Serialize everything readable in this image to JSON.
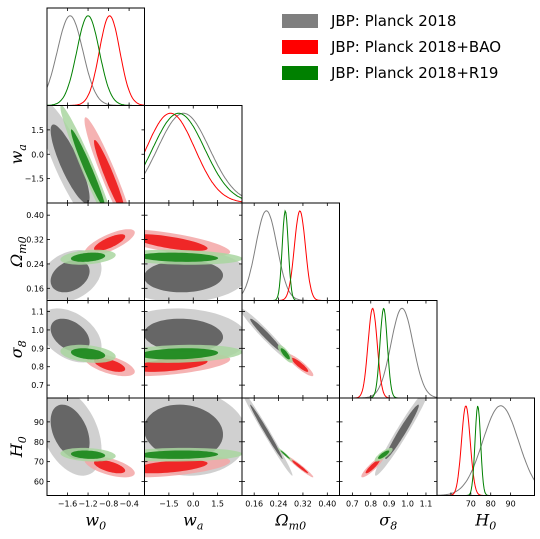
{
  "chart_data": {
    "type": "corner-triangle",
    "legend": {
      "placement": "top-right",
      "entries": [
        {
          "label": "JBP: Planck 2018",
          "color": "#7f7f7f",
          "dark": "#606060",
          "light": "#c8c8c8"
        },
        {
          "label": "JBP: Planck 2018+BAO",
          "color": "#ff0000",
          "dark": "#ee2020",
          "light": "#f3a6a6"
        },
        {
          "label": "JBP: Planck 2018+R19",
          "color": "#008000",
          "dark": "#1f8a1f",
          "light": "#a9d6a0"
        }
      ]
    },
    "parameters": [
      {
        "key": "w0",
        "label": "w",
        "sub": "0",
        "range": [
          -2.0,
          -0.1
        ],
        "ticks": [
          -1.6,
          -1.2,
          -0.8,
          -0.4
        ],
        "tick_labels": [
          "−1.6",
          "−1.2",
          "−0.8",
          "−0.4"
        ]
      },
      {
        "key": "wa",
        "label": "w",
        "sub": "a",
        "range": [
          -3.0,
          3.0
        ],
        "ticks": [
          -1.5,
          0.0,
          1.5
        ],
        "tick_labels": [
          "−1.5",
          "0.0",
          "1.5"
        ]
      },
      {
        "key": "Om",
        "label": "Ω",
        "sub": "m0",
        "range": [
          0.12,
          0.44
        ],
        "ticks": [
          0.16,
          0.24,
          0.32,
          0.4
        ],
        "tick_labels": [
          "0.16",
          "0.24",
          "0.32",
          "0.40"
        ]
      },
      {
        "key": "s8",
        "label": "σ",
        "sub": "8",
        "range": [
          0.63,
          1.16
        ],
        "ticks": [
          0.7,
          0.8,
          0.9,
          1.0,
          1.1
        ],
        "tick_labels": [
          "0.7",
          "0.8",
          "0.9",
          "1.0",
          "1.1"
        ]
      },
      {
        "key": "H0",
        "label": "H",
        "sub": "0",
        "range": [
          53.0,
          102.0
        ],
        "ticks": [
          60,
          70,
          80,
          90
        ],
        "tick_labels": [
          "60",
          "70",
          "80",
          "90"
        ]
      }
    ],
    "bottom_tick_labels": {
      "w0": [
        "−1.6",
        "−1.2",
        "−0.8",
        "−0.4"
      ],
      "wa": [
        "−1.5",
        "0.0",
        "1.5"
      ],
      "Om": [
        "0.16",
        "0.24",
        "0.32",
        "0.40"
      ],
      "s8": [
        "0.7",
        "0.8",
        "0.9",
        "1.0",
        "1.1"
      ],
      "H0": [
        "70",
        "80",
        "90"
      ]
    },
    "left_tick_labels": {
      "wa": [
        "−1.5",
        "0.0",
        "1.5"
      ],
      "Om": [
        "0.16",
        "0.24",
        "0.32",
        "0.40"
      ],
      "s8": [
        "0.7",
        "0.8",
        "0.9",
        "1.0",
        "1.1"
      ],
      "H0": [
        "60",
        "70",
        "80",
        "90"
      ]
    },
    "posteriors": {
      "planck": {
        "w0": {
          "mean": -1.55,
          "sd": 0.25
        },
        "wa": {
          "mean": -0.6,
          "sd": 1.6
        },
        "Om": {
          "mean": 0.2,
          "sd": 0.035
        },
        "s8": {
          "mean": 0.97,
          "sd": 0.06
        },
        "H0": {
          "mean": 85.0,
          "sd": 9.0
        },
        "corr": {
          "w0|wa": -0.85,
          "w0|Om": 0.3,
          "w0|s8": -0.4,
          "w0|H0": -0.4,
          "wa|Om": 0.05,
          "wa|s8": -0.1,
          "wa|H0": -0.1,
          "Om|s8": -0.97,
          "Om|H0": -0.99,
          "s8|H0": 0.97
        }
      },
      "bao": {
        "w0": {
          "mean": -0.78,
          "sd": 0.2
        },
        "wa": {
          "mean": -1.4,
          "sd": 1.5
        },
        "Om": {
          "mean": 0.31,
          "sd": 0.018
        },
        "s8": {
          "mean": 0.81,
          "sd": 0.025
        },
        "H0": {
          "mean": 67.5,
          "sd": 2.2
        },
        "corr": {
          "w0|wa": -0.95,
          "w0|Om": 0.75,
          "w0|s8": -0.6,
          "w0|H0": -0.6,
          "wa|Om": -0.7,
          "wa|s8": 0.5,
          "wa|H0": 0.5,
          "Om|s8": -0.9,
          "Om|H0": -0.97,
          "s8|H0": 0.9
        }
      },
      "r19": {
        "w0": {
          "mean": -1.2,
          "sd": 0.22
        },
        "wa": {
          "mean": -0.9,
          "sd": 1.6
        },
        "Om": {
          "mean": 0.262,
          "sd": 0.01
        },
        "s8": {
          "mean": 0.87,
          "sd": 0.02
        },
        "H0": {
          "mean": 73.5,
          "sd": 1.4
        },
        "corr": {
          "w0|wa": -0.97,
          "w0|Om": 0.3,
          "w0|s8": -0.3,
          "w0|H0": -0.2,
          "wa|Om": -0.2,
          "wa|s8": 0.2,
          "wa|H0": 0.1,
          "Om|s8": -0.8,
          "Om|H0": -0.97,
          "s8|H0": 0.8
        }
      }
    },
    "grid": false
  }
}
